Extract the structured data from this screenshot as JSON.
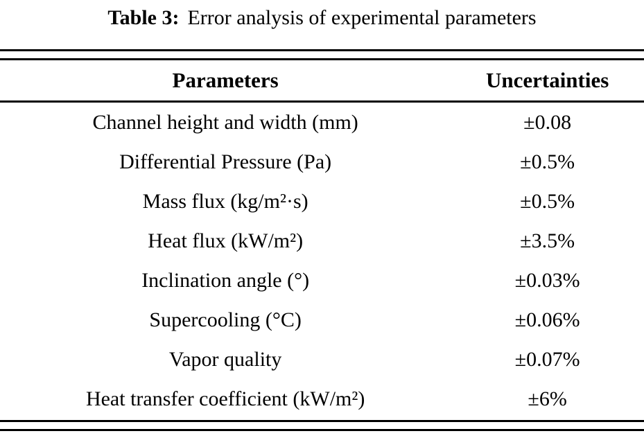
{
  "caption": {
    "label": "Table 3:",
    "text": "Error analysis of experimental parameters"
  },
  "table": {
    "headers": [
      "Parameters",
      "Uncertainties"
    ],
    "rows": [
      {
        "parameter": "Channel height and width (mm)",
        "uncertainty": "±0.08"
      },
      {
        "parameter": "Differential Pressure (Pa)",
        "uncertainty": "±0.5%"
      },
      {
        "parameter": "Mass flux (kg/m²·s)",
        "uncertainty": "±0.5%"
      },
      {
        "parameter": "Heat flux (kW/m²)",
        "uncertainty": "±3.5%"
      },
      {
        "parameter": "Inclination angle (°)",
        "uncertainty": "±0.03%"
      },
      {
        "parameter": "Supercooling (°C)",
        "uncertainty": "±0.06%"
      },
      {
        "parameter": "Vapor quality",
        "uncertainty": "±0.07%"
      },
      {
        "parameter": "Heat transfer coefficient (kW/m²)",
        "uncertainty": "±6%"
      }
    ]
  },
  "colors": {
    "text": "#000000",
    "background": "#ffffff",
    "rule": "#000000"
  }
}
